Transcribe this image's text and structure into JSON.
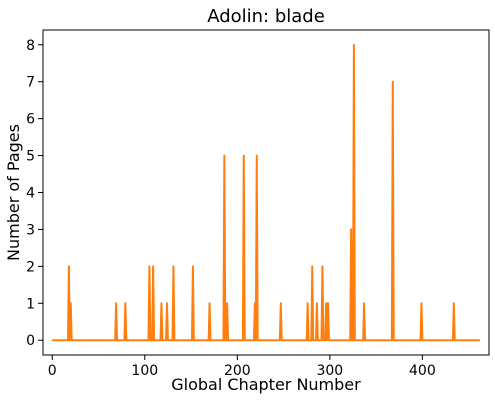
{
  "chart_data": {
    "type": "line",
    "title": "Adolin: blade",
    "xlabel": "Global Chapter Number",
    "ylabel": "Number of Pages",
    "xlim": [
      -10,
      472
    ],
    "ylim": [
      -0.4,
      8.4
    ],
    "xticks": [
      0,
      100,
      200,
      300,
      400
    ],
    "yticks": [
      0,
      1,
      2,
      3,
      4,
      5,
      6,
      7,
      8
    ],
    "grid": false,
    "series": [
      {
        "color": "#ff7f0e",
        "points": [
          [
            0,
            0
          ],
          [
            17,
            0
          ],
          [
            18,
            2
          ],
          [
            19,
            0
          ],
          [
            20,
            1
          ],
          [
            21,
            0
          ],
          [
            68,
            0
          ],
          [
            69,
            1
          ],
          [
            70,
            0
          ],
          [
            78,
            0
          ],
          [
            79,
            1
          ],
          [
            80,
            0
          ],
          [
            104,
            0
          ],
          [
            105,
            2
          ],
          [
            106,
            0
          ],
          [
            108,
            0
          ],
          [
            109,
            2
          ],
          [
            110,
            0
          ],
          [
            117,
            0
          ],
          [
            118,
            1
          ],
          [
            119,
            0
          ],
          [
            123,
            0
          ],
          [
            124,
            1
          ],
          [
            125,
            0
          ],
          [
            130,
            0
          ],
          [
            131,
            2
          ],
          [
            132,
            0
          ],
          [
            151,
            0
          ],
          [
            152,
            2
          ],
          [
            153,
            0
          ],
          [
            169,
            0
          ],
          [
            170,
            1
          ],
          [
            171,
            0
          ],
          [
            185,
            0
          ],
          [
            186,
            5
          ],
          [
            187,
            0
          ],
          [
            188,
            0
          ],
          [
            189,
            1
          ],
          [
            190,
            0
          ],
          [
            206,
            0
          ],
          [
            207,
            5
          ],
          [
            208,
            0
          ],
          [
            218,
            0
          ],
          [
            219,
            1
          ],
          [
            220,
            0
          ],
          [
            221,
            5
          ],
          [
            222,
            0
          ],
          [
            246,
            0
          ],
          [
            247,
            1
          ],
          [
            248,
            0
          ],
          [
            275,
            0
          ],
          [
            276,
            1
          ],
          [
            277,
            0
          ],
          [
            280,
            0
          ],
          [
            281,
            2
          ],
          [
            282,
            0
          ],
          [
            285,
            0
          ],
          [
            286,
            1
          ],
          [
            287,
            0
          ],
          [
            291,
            0
          ],
          [
            292,
            2
          ],
          [
            293,
            0
          ],
          [
            295,
            0
          ],
          [
            296,
            1
          ],
          [
            297,
            0
          ],
          [
            298,
            1
          ],
          [
            299,
            0
          ],
          [
            322,
            0
          ],
          [
            323,
            3
          ],
          [
            324,
            0
          ],
          [
            325,
            0
          ],
          [
            326,
            8
          ],
          [
            327,
            0
          ],
          [
            336,
            0
          ],
          [
            337,
            1
          ],
          [
            338,
            0
          ],
          [
            367,
            0
          ],
          [
            368,
            7
          ],
          [
            369,
            0
          ],
          [
            398,
            0
          ],
          [
            399,
            1
          ],
          [
            400,
            0
          ],
          [
            433,
            0
          ],
          [
            434,
            1
          ],
          [
            435,
            0
          ],
          [
            462,
            0
          ]
        ]
      }
    ]
  }
}
